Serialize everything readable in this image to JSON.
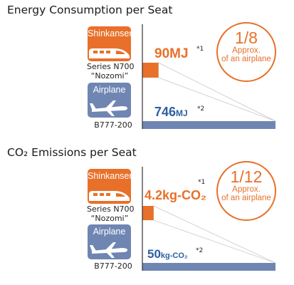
{
  "chart_data": [
    {
      "type": "bar",
      "title": "Energy Consumption per Seat",
      "categories": [
        "Shinkansen",
        "Airplane"
      ],
      "category_captions": [
        [
          "Series N700",
          "“Nozomi”"
        ],
        [
          "B777-200"
        ]
      ],
      "values": [
        90,
        746
      ],
      "value_labels": [
        {
          "number": "90",
          "unit": "MJ",
          "note": "*1"
        },
        {
          "number": "746",
          "unit": "MJ",
          "note": "*2"
        }
      ],
      "ratio_badge": {
        "ratio": "1/8",
        "text": [
          "Approx.",
          "of an airplane"
        ]
      },
      "colors": [
        "#e8702a",
        "#6f86b3"
      ],
      "xlim": [
        0,
        746
      ]
    },
    {
      "type": "bar",
      "title": "CO₂ Emissions per Seat",
      "categories": [
        "Shinkansen",
        "Airplane"
      ],
      "category_captions": [
        [
          "Series N700",
          "“Nozomi”"
        ],
        [
          "B777-200"
        ]
      ],
      "values": [
        4.2,
        50
      ],
      "value_labels": [
        {
          "number": "4.2",
          "unit": "kg-CO₂",
          "note": "*1"
        },
        {
          "number": "50",
          "unit": "kg-CO₂",
          "note": "*2"
        }
      ],
      "ratio_badge": {
        "ratio": "1/12",
        "text": [
          "Approx.",
          "of an airplane"
        ]
      },
      "colors": [
        "#e8702a",
        "#6f86b3"
      ],
      "xlim": [
        0,
        50
      ]
    }
  ],
  "colors": {
    "shinkansen": "#e8702a",
    "airplane_badge": "#6f86b3",
    "airplane_bar": "#6f86b3",
    "airplane_value": "#2d5fa0",
    "guide": "#c8c8c8"
  },
  "icons": {
    "shinkansen": "bullet-train-icon",
    "airplane": "airplane-icon"
  }
}
